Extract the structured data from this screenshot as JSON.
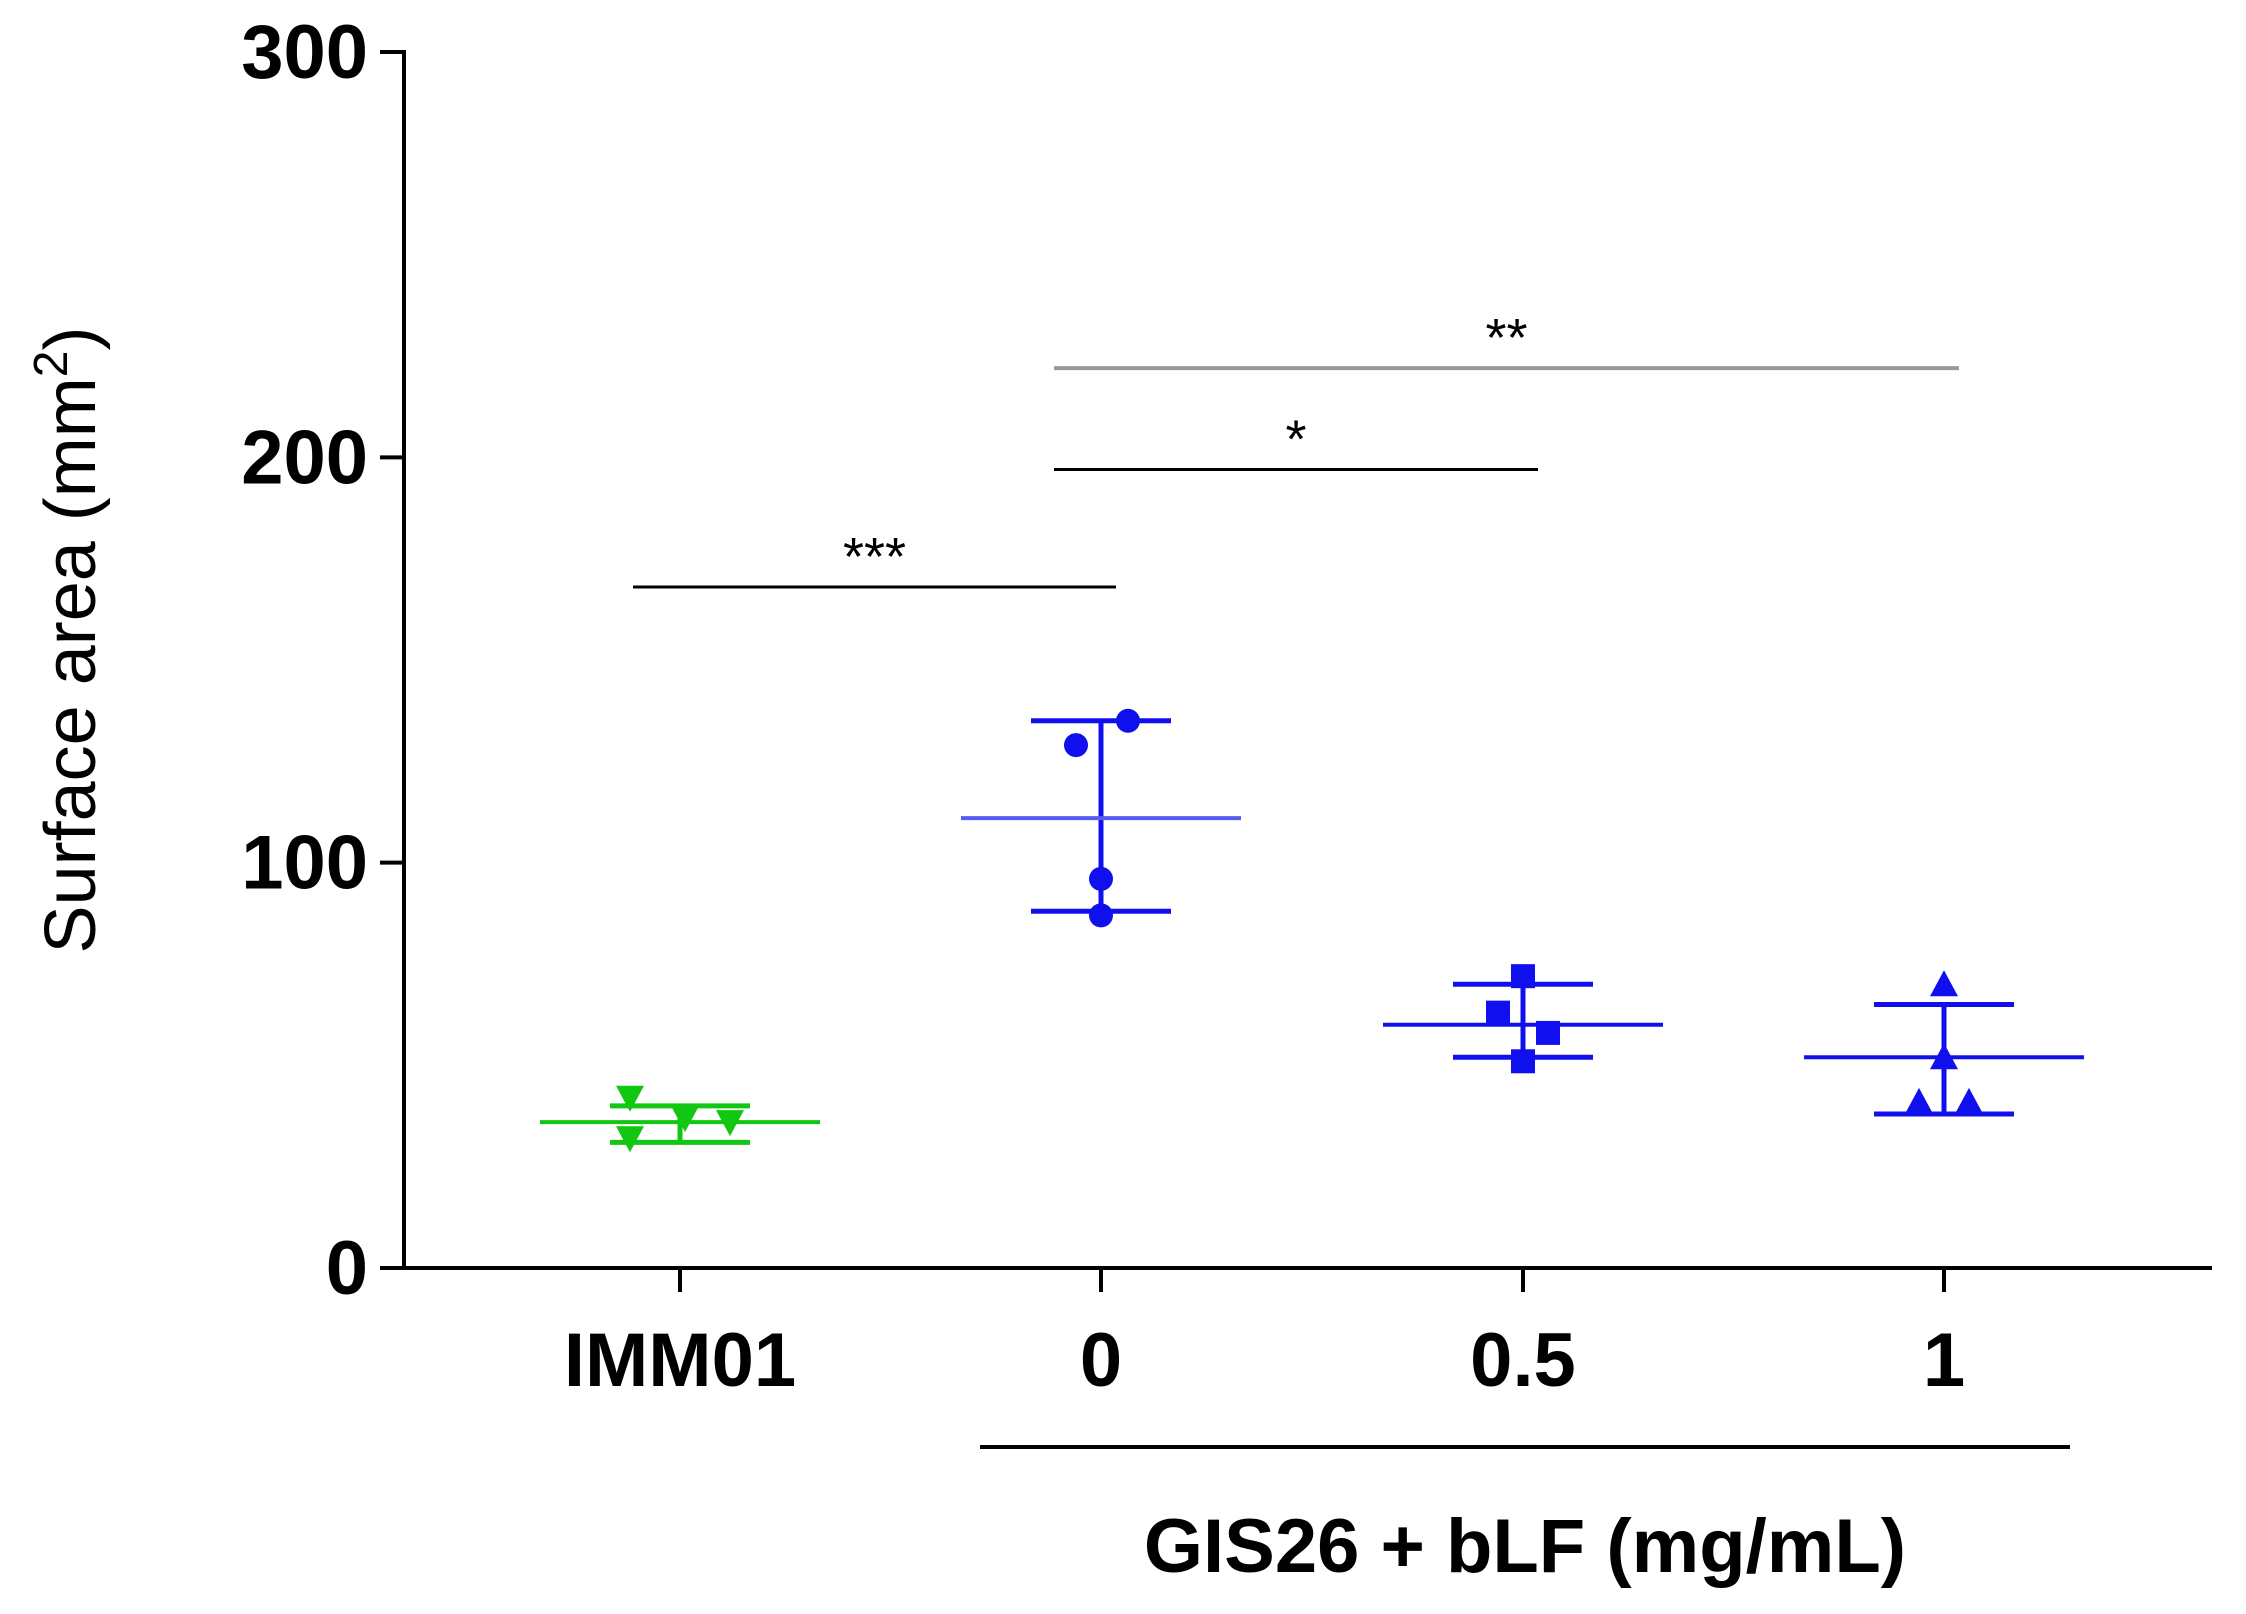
{
  "chart_data": {
    "type": "scatter",
    "ylabel": "Surface area (mm",
    "ylabel_superscript": "2",
    "ylabel_close": ")",
    "ylim": [
      0,
      300
    ],
    "yticks": [
      0,
      100,
      200,
      300
    ],
    "yticklabels": [
      "0",
      "100",
      "200",
      "300"
    ],
    "categories": [
      "IMM01",
      "0",
      "0.5",
      "1"
    ],
    "group_label": "GIS26 + bLF (mg/mL)",
    "group_members": [
      "0",
      "0.5",
      "1"
    ],
    "series": [
      {
        "name": "IMM01",
        "category": "IMM01",
        "color": "#11c711",
        "marker": "triangle-down",
        "points": [
          42,
          37,
          36,
          32
        ],
        "mean": 36,
        "error_low": 31,
        "error_high": 40
      },
      {
        "name": "0",
        "category": "0",
        "color": "#1010ee",
        "mean_color": "#5a5af5",
        "marker": "circle",
        "points": [
          135,
          129,
          96,
          87
        ],
        "mean": 111,
        "error_low": 88,
        "error_high": 135
      },
      {
        "name": "0.5",
        "category": "0.5",
        "color": "#1010ee",
        "marker": "square",
        "points": [
          72,
          63,
          58,
          51
        ],
        "mean": 60,
        "error_low": 52,
        "error_high": 70
      },
      {
        "name": "1",
        "category": "1",
        "color": "#1010ee",
        "marker": "triangle-up",
        "points": [
          70,
          52,
          41,
          41
        ],
        "mean": 52,
        "error_low": 38,
        "error_high": 65
      }
    ],
    "significance": [
      {
        "from": "IMM01",
        "to": "0",
        "y": 168,
        "label": "***",
        "color": "#000000"
      },
      {
        "from": "0",
        "to": "0.5",
        "y": 197,
        "label": "*",
        "color": "#000000"
      },
      {
        "from": "0",
        "to": "1",
        "y": 222,
        "label": "**",
        "color": "#999999"
      }
    ]
  }
}
